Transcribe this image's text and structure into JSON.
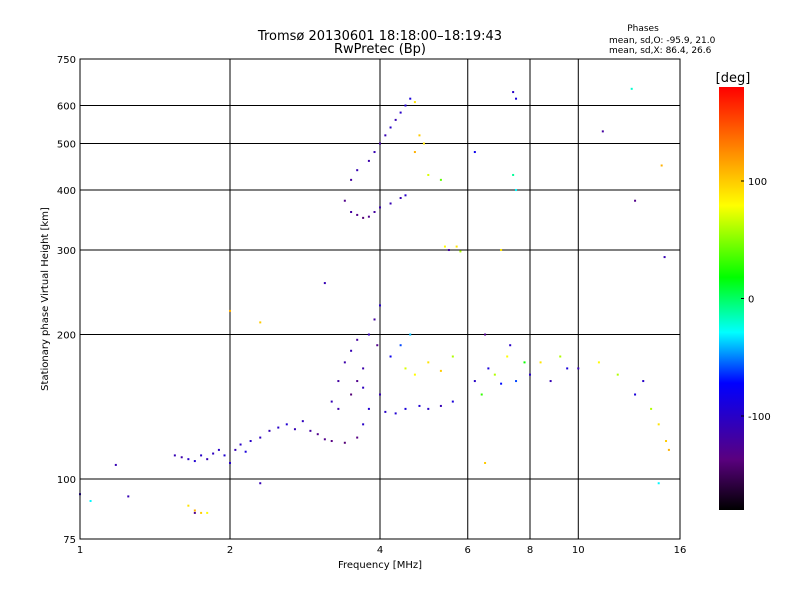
{
  "chart_data": {
    "type": "scatter",
    "title": "Tromsø 20130601 18:18:00–18:19:43",
    "subtitle": "RwPretec (Bp)",
    "xlabel": "Frequency [MHz]",
    "ylabel": "Stationary phase Virtual Height [km]",
    "x_scale": "log",
    "y_scale": "log",
    "xlim": [
      1,
      16
    ],
    "ylim": [
      75,
      750
    ],
    "grid": true,
    "x_ticks": [
      1,
      2,
      4,
      6,
      8,
      10,
      16
    ],
    "x_tick_labels": [
      "1",
      "2",
      "4",
      "6",
      "8",
      "10",
      "16"
    ],
    "y_ticks": [
      75,
      100,
      200,
      300,
      400,
      500,
      600,
      750
    ],
    "y_tick_labels": [
      "75",
      "100",
      "200",
      "300",
      "400",
      "500",
      "600",
      "750"
    ],
    "stats": {
      "header": "Phases",
      "lines": [
        "mean, sd,O: -95.9, 21.0",
        "mean, sd,X:  86.4, 26.6"
      ]
    },
    "colorbar": {
      "label": "[deg]",
      "range": [
        -180,
        180
      ],
      "ticks": [
        100,
        0,
        -100
      ],
      "tick_labels": [
        "100",
        "0",
        "-100"
      ]
    },
    "points": [
      [
        1.0,
        93,
        -100
      ],
      [
        1.05,
        90,
        -30
      ],
      [
        1.18,
        107,
        -110
      ],
      [
        1.25,
        92,
        -110
      ],
      [
        1.55,
        112,
        -110
      ],
      [
        1.6,
        111,
        -115
      ],
      [
        1.65,
        110,
        -100
      ],
      [
        1.7,
        109,
        -95
      ],
      [
        1.75,
        112,
        -100
      ],
      [
        1.8,
        110,
        -110
      ],
      [
        1.85,
        113,
        -105
      ],
      [
        1.9,
        115,
        -100
      ],
      [
        1.95,
        112,
        -95
      ],
      [
        2.0,
        108,
        -100
      ],
      [
        2.05,
        115,
        -110
      ],
      [
        2.1,
        118,
        -100
      ],
      [
        2.15,
        114,
        -90
      ],
      [
        2.2,
        120,
        -100
      ],
      [
        2.3,
        122,
        -105
      ],
      [
        2.4,
        126,
        -110
      ],
      [
        2.5,
        128,
        -100
      ],
      [
        2.6,
        130,
        -95
      ],
      [
        2.7,
        127,
        -110
      ],
      [
        2.8,
        132,
        -105
      ],
      [
        2.9,
        126,
        -120
      ],
      [
        3.0,
        124,
        -130
      ],
      [
        3.1,
        121,
        -130
      ],
      [
        3.2,
        120,
        -135
      ],
      [
        3.4,
        119,
        -140
      ],
      [
        3.6,
        122,
        -135
      ],
      [
        3.7,
        130,
        -100
      ],
      [
        3.2,
        145,
        -110
      ],
      [
        3.3,
        160,
        -120
      ],
      [
        3.4,
        175,
        -115
      ],
      [
        3.5,
        185,
        -110
      ],
      [
        3.6,
        195,
        -120
      ],
      [
        3.7,
        170,
        -115
      ],
      [
        3.8,
        200,
        -110
      ],
      [
        3.9,
        215,
        -120
      ],
      [
        4.0,
        230,
        -100
      ],
      [
        3.95,
        190,
        -130
      ],
      [
        4.0,
        150,
        -110
      ],
      [
        3.5,
        150,
        -140
      ],
      [
        3.6,
        160,
        -130
      ],
      [
        3.3,
        140,
        -115
      ],
      [
        3.7,
        155,
        -105
      ],
      [
        3.8,
        140,
        -95
      ],
      [
        4.1,
        138,
        -100
      ],
      [
        4.3,
        137,
        -95
      ],
      [
        4.5,
        140,
        -90
      ],
      [
        4.8,
        142,
        -95
      ],
      [
        5.0,
        140,
        -100
      ],
      [
        5.3,
        142,
        -110
      ],
      [
        5.6,
        145,
        -90
      ],
      [
        4.5,
        170,
        70
      ],
      [
        4.7,
        165,
        80
      ],
      [
        5.0,
        175,
        90
      ],
      [
        5.3,
        168,
        100
      ],
      [
        5.6,
        180,
        60
      ],
      [
        4.2,
        180,
        -80
      ],
      [
        4.4,
        190,
        -60
      ],
      [
        4.6,
        200,
        -40
      ],
      [
        6.2,
        160,
        -100
      ],
      [
        6.4,
        150,
        30
      ],
      [
        6.6,
        170,
        -90
      ],
      [
        6.8,
        165,
        60
      ],
      [
        7.0,
        158,
        -70
      ],
      [
        7.2,
        180,
        80
      ],
      [
        7.5,
        160,
        -60
      ],
      [
        7.8,
        175,
        20
      ],
      [
        8.0,
        165,
        -100
      ],
      [
        8.4,
        175,
        90
      ],
      [
        8.8,
        160,
        -110
      ],
      [
        9.2,
        180,
        60
      ],
      [
        9.5,
        170,
        -90
      ],
      [
        6.5,
        200,
        -130
      ],
      [
        7.3,
        190,
        -100
      ],
      [
        3.5,
        360,
        -120
      ],
      [
        3.6,
        355,
        -130
      ],
      [
        3.7,
        350,
        -140
      ],
      [
        3.8,
        352,
        -130
      ],
      [
        3.9,
        360,
        -120
      ],
      [
        4.0,
        368,
        -115
      ],
      [
        4.2,
        375,
        -110
      ],
      [
        4.4,
        385,
        -110
      ],
      [
        4.5,
        390,
        -100
      ],
      [
        3.4,
        380,
        -130
      ],
      [
        3.5,
        420,
        -120
      ],
      [
        3.6,
        440,
        -110
      ],
      [
        3.8,
        460,
        -115
      ],
      [
        3.9,
        480,
        -110
      ],
      [
        4.0,
        500,
        -120
      ],
      [
        4.1,
        520,
        -110
      ],
      [
        4.2,
        540,
        -100
      ],
      [
        4.3,
        560,
        -110
      ],
      [
        4.4,
        580,
        -100
      ],
      [
        4.5,
        600,
        -95
      ],
      [
        4.6,
        620,
        -90
      ],
      [
        4.7,
        610,
        90
      ],
      [
        4.8,
        520,
        100
      ],
      [
        4.9,
        500,
        90
      ],
      [
        4.7,
        480,
        110
      ],
      [
        5.0,
        430,
        70
      ],
      [
        5.3,
        420,
        40
      ],
      [
        5.4,
        305,
        80
      ],
      [
        5.5,
        300,
        -120
      ],
      [
        5.7,
        305,
        90
      ],
      [
        5.8,
        298,
        60
      ],
      [
        6.2,
        480,
        -80
      ],
      [
        7.0,
        300,
        90
      ],
      [
        7.4,
        640,
        -100
      ],
      [
        7.5,
        620,
        -90
      ],
      [
        7.4,
        430,
        -10
      ],
      [
        7.5,
        400,
        -30
      ],
      [
        11.2,
        530,
        -120
      ],
      [
        12.8,
        650,
        -20
      ],
      [
        13.0,
        380,
        -130
      ],
      [
        14.7,
        450,
        110
      ],
      [
        14.9,
        290,
        -110
      ],
      [
        10.0,
        170,
        -110
      ],
      [
        11.0,
        175,
        80
      ],
      [
        12.0,
        165,
        60
      ],
      [
        13.0,
        150,
        -90
      ],
      [
        13.5,
        160,
        -100
      ],
      [
        14.0,
        140,
        60
      ],
      [
        14.5,
        130,
        90
      ],
      [
        15.0,
        120,
        100
      ],
      [
        15.2,
        115,
        110
      ],
      [
        14.5,
        98,
        -30
      ],
      [
        2.3,
        98,
        -110
      ],
      [
        6.5,
        108,
        100
      ],
      [
        1.65,
        88,
        90
      ],
      [
        1.7,
        86,
        110
      ],
      [
        1.75,
        85,
        100
      ],
      [
        1.8,
        85,
        80
      ],
      [
        1.7,
        85,
        -130
      ],
      [
        2.0,
        224,
        110
      ],
      [
        2.3,
        212,
        100
      ],
      [
        3.1,
        256,
        -110
      ]
    ]
  }
}
